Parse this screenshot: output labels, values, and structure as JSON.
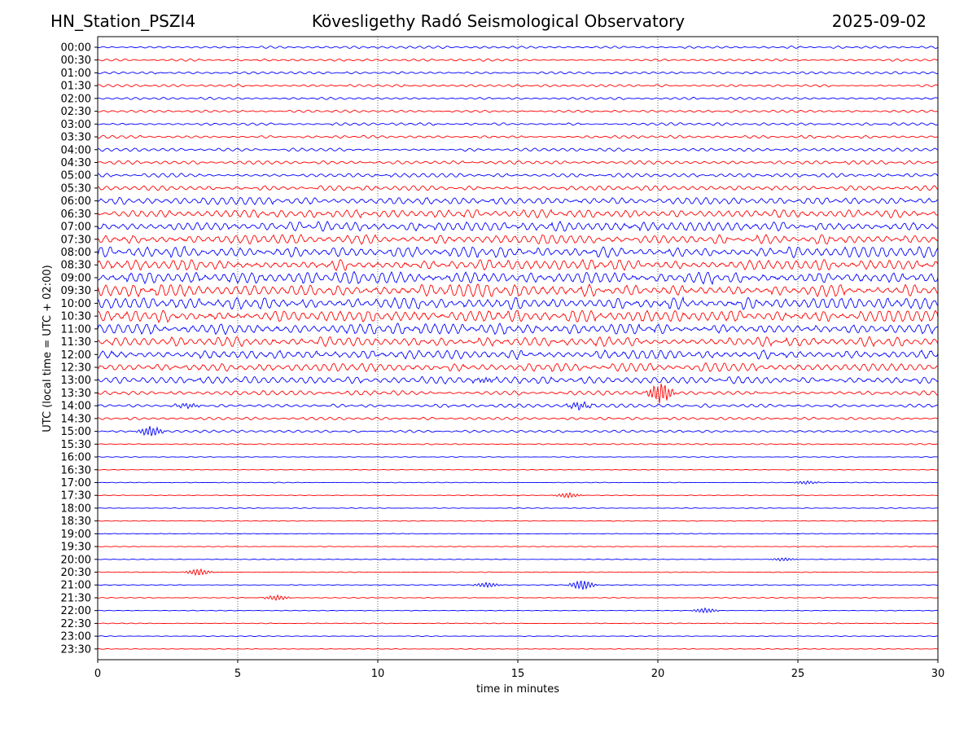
{
  "header": {
    "station": "HN_Station_PSZI4",
    "title": "Kövesligethy Radó Seismological Observatory",
    "date": "2025-09-02"
  },
  "chart_data": {
    "type": "line",
    "subtype": "helicorder",
    "xlabel": "time in minutes",
    "ylabel": "UTC (local time = UTC + 02:00)",
    "xlim": [
      0,
      30
    ],
    "x_ticks": [
      0,
      5,
      10,
      15,
      20,
      25,
      30
    ],
    "x_grid": "dotted",
    "trace_colors": [
      "#0000ff",
      "#ff0000"
    ],
    "row_labels": [
      "00:00",
      "00:30",
      "01:00",
      "01:30",
      "02:00",
      "02:30",
      "03:00",
      "03:30",
      "04:00",
      "04:30",
      "05:00",
      "05:30",
      "06:00",
      "06:30",
      "07:00",
      "07:30",
      "08:00",
      "08:30",
      "09:00",
      "09:30",
      "10:00",
      "10:30",
      "11:00",
      "11:30",
      "12:00",
      "12:30",
      "13:00",
      "13:30",
      "14:00",
      "14:30",
      "15:00",
      "15:30",
      "16:00",
      "16:30",
      "17:00",
      "17:30",
      "18:00",
      "18:30",
      "19:00",
      "19:30",
      "20:00",
      "20:30",
      "21:00",
      "21:30",
      "22:00",
      "22:30",
      "23:00",
      "23:30"
    ],
    "row_noise_level": [
      1,
      1,
      1,
      1,
      1,
      1,
      1.2,
      1.2,
      1.3,
      1.5,
      1.6,
      2,
      3,
      3.5,
      4,
      4,
      4.5,
      4.5,
      5,
      5,
      5,
      5,
      4.5,
      4,
      4,
      3.5,
      3,
      2,
      1.5,
      1.2,
      1,
      0.5,
      0.3,
      0.3,
      0.3,
      0.3,
      0.3,
      0.3,
      0.3,
      0.3,
      0.3,
      0.3,
      0.3,
      0.3,
      0.3,
      0.3,
      0.3,
      0.3
    ],
    "events": [
      {
        "row": "20:30",
        "minute": 3.6,
        "amplitude": 4
      },
      {
        "row": "21:00",
        "minute": 17.3,
        "amplitude": 6
      },
      {
        "row": "21:00",
        "minute": 13.9,
        "amplitude": 3
      },
      {
        "row": "21:30",
        "minute": 6.4,
        "amplitude": 3
      },
      {
        "row": "22:00",
        "minute": 21.7,
        "amplitude": 3
      },
      {
        "row": "14:00",
        "minute": 17.2,
        "amplitude": 4
      },
      {
        "row": "14:00",
        "minute": 3.2,
        "amplitude": 3
      },
      {
        "row": "15:00",
        "minute": 1.9,
        "amplitude": 6
      },
      {
        "row": "13:00",
        "minute": 13.8,
        "amplitude": 3
      },
      {
        "row": "17:30",
        "minute": 16.8,
        "amplitude": 3
      },
      {
        "row": "17:00",
        "minute": 25.3,
        "amplitude": 2
      },
      {
        "row": "20:00",
        "minute": 24.5,
        "amplitude": 2
      },
      {
        "row": "13:30",
        "minute": 20.1,
        "amplitude": 12
      }
    ]
  }
}
